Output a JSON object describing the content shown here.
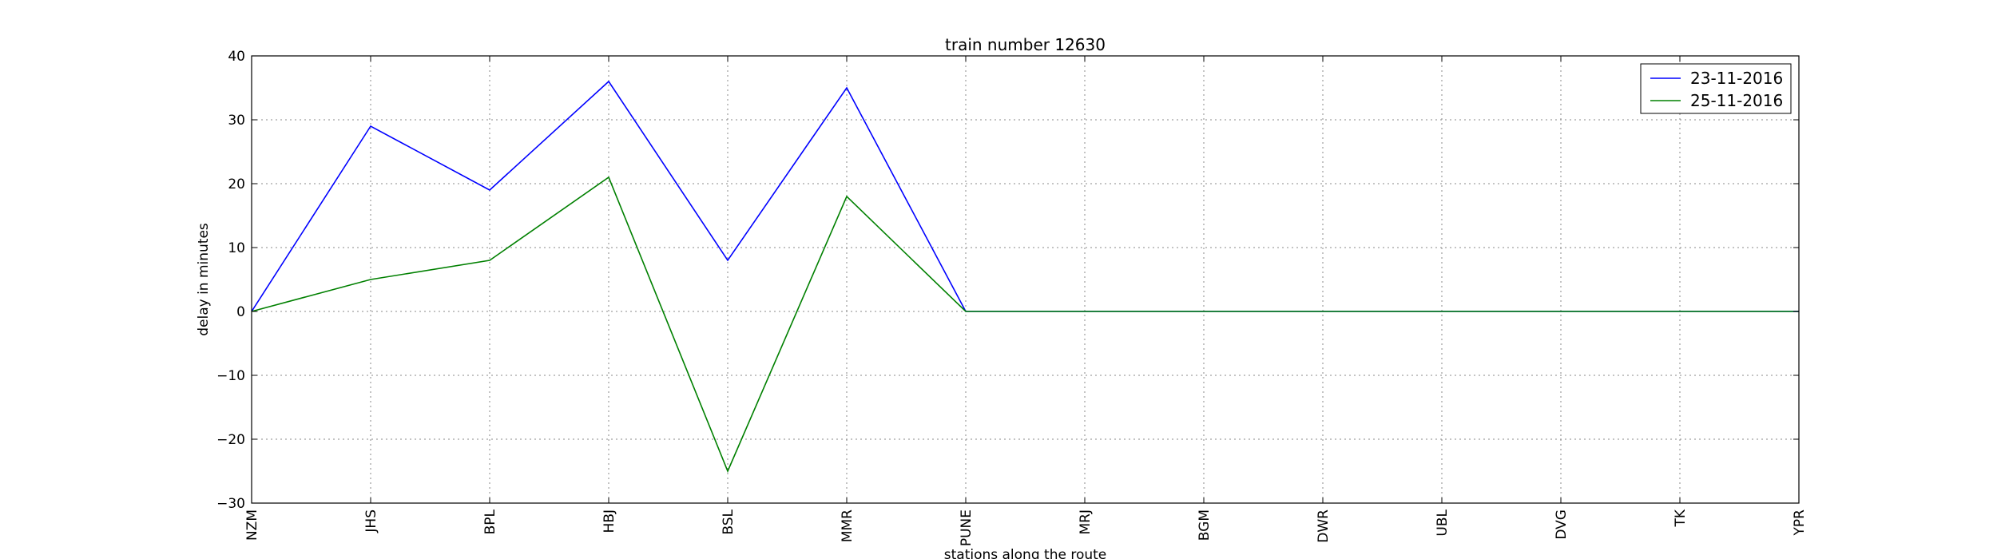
{
  "chart_data": {
    "type": "line",
    "title": "train number 12630",
    "xlabel": "stations along the route",
    "ylabel": "delay in minutes",
    "categories": [
      "NZM",
      "JHS",
      "BPL",
      "HBJ",
      "BSL",
      "MMR",
      "PUNE",
      "MRJ",
      "BGM",
      "DWR",
      "UBL",
      "DVG",
      "TK",
      "YPR"
    ],
    "ylim": [
      -30,
      40
    ],
    "yticks": [
      "−30",
      "−20",
      "−10",
      "0",
      "10",
      "20",
      "30",
      "40"
    ],
    "grid": true,
    "legend_position": "top-right",
    "series": [
      {
        "name": "23-11-2016",
        "color": "#0000ff",
        "values": [
          0,
          29,
          19,
          36,
          8,
          35,
          0,
          0,
          0,
          0,
          0,
          0,
          0,
          0
        ]
      },
      {
        "name": "25-11-2016",
        "color": "#008000",
        "values": [
          0,
          5,
          8,
          21,
          -25,
          18,
          0,
          0,
          0,
          0,
          0,
          0,
          0,
          0
        ]
      }
    ]
  }
}
